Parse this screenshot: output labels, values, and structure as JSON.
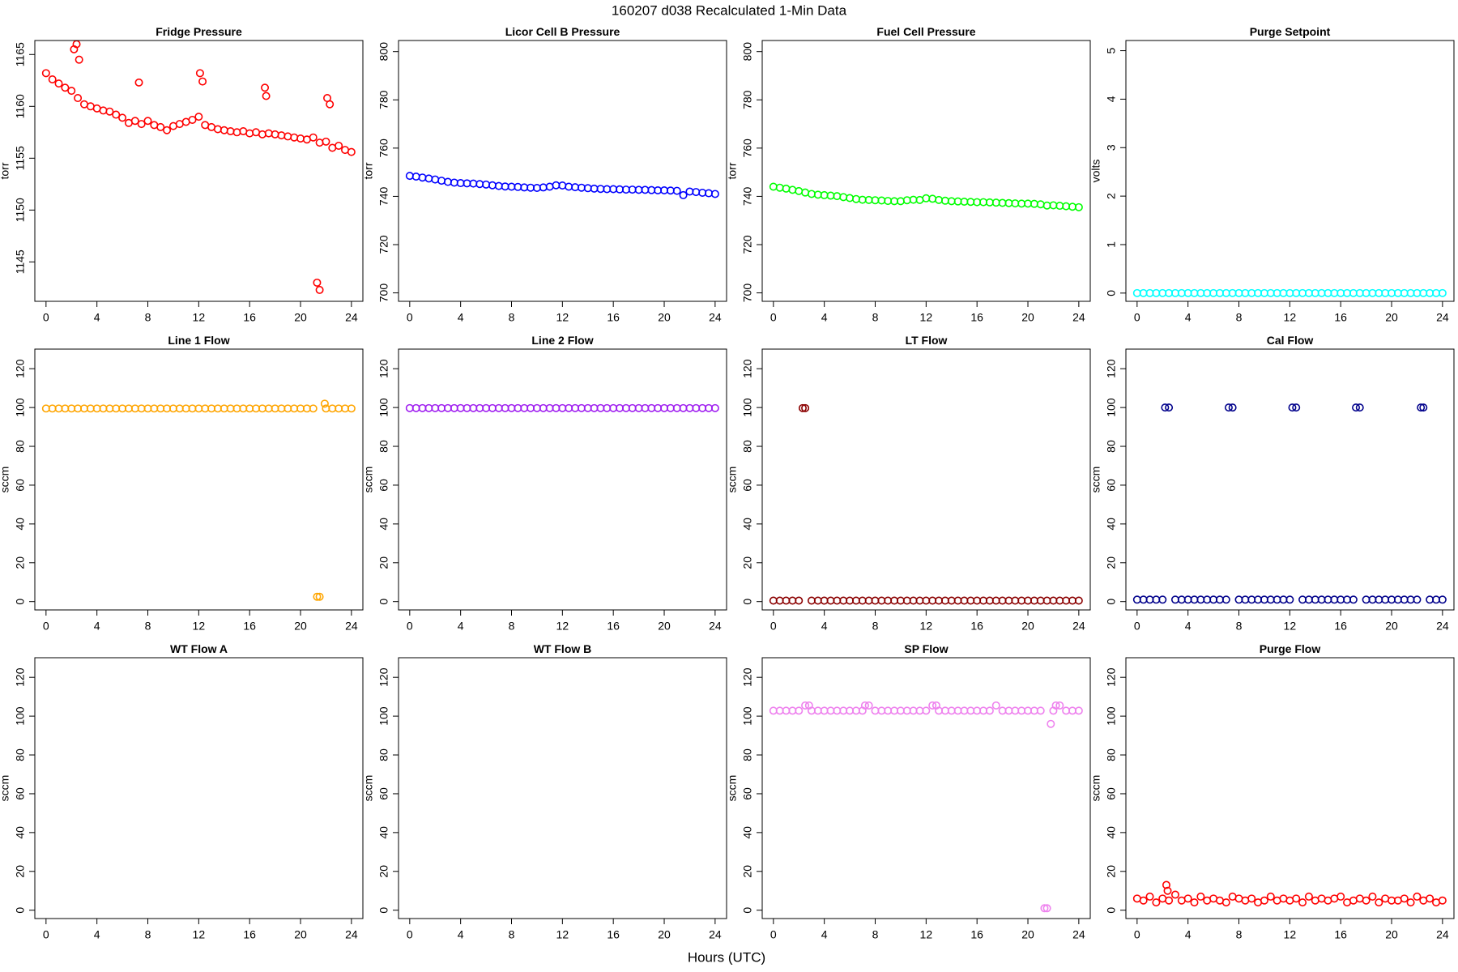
{
  "title": "160207   d038   Recalculated 1-Min Data",
  "xlabel": "Hours (UTC)",
  "chart_data": [
    {
      "type": "scatter",
      "title": "Fridge Pressure",
      "ylabel": "torr",
      "color": "#ff0000",
      "xlim": [
        -0.88,
        24.9
      ],
      "xticks": [
        0,
        4,
        8,
        12,
        16,
        20,
        24
      ],
      "ylim": [
        1141.2,
        1166.35
      ],
      "yticks": [
        1145,
        1150,
        1155,
        1160,
        1165
      ],
      "x": [
        0,
        0.5,
        1,
        1.5,
        2,
        2.5,
        3,
        3.5,
        4,
        4.5,
        5,
        5.5,
        6,
        6.5,
        7,
        7.5,
        8,
        8.5,
        9,
        9.5,
        10,
        10.5,
        11,
        11.5,
        12,
        12.5,
        13,
        13.5,
        14,
        14.5,
        15,
        15.5,
        16,
        16.5,
        17,
        17.5,
        18,
        18.5,
        19,
        19.5,
        20,
        20.5,
        21,
        21.5,
        22,
        22.5,
        23,
        23.5,
        24,
        2.2,
        2.4,
        2.6,
        7.3,
        12.1,
        12.3,
        17.2,
        17.3,
        21.3,
        21.5,
        22.1,
        22.3
      ],
      "values": [
        1163.2,
        1162.6,
        1162.2,
        1161.8,
        1161.5,
        1160.8,
        1160.2,
        1160.0,
        1159.8,
        1159.6,
        1159.5,
        1159.2,
        1158.9,
        1158.4,
        1158.6,
        1158.3,
        1158.6,
        1158.2,
        1158.0,
        1157.7,
        1158.1,
        1158.3,
        1158.5,
        1158.7,
        1159.0,
        1158.2,
        1158.0,
        1157.8,
        1157.7,
        1157.6,
        1157.5,
        1157.6,
        1157.4,
        1157.5,
        1157.3,
        1157.4,
        1157.3,
        1157.2,
        1157.1,
        1157.0,
        1156.9,
        1156.8,
        1157.0,
        1156.5,
        1156.6,
        1156.0,
        1156.2,
        1155.8,
        1155.6,
        1165.5,
        1166.0,
        1164.5,
        1162.3,
        1163.2,
        1162.4,
        1161.8,
        1161.0,
        1143.0,
        1142.3,
        1160.8,
        1160.2
      ]
    },
    {
      "type": "scatter",
      "title": "Licor Cell B Pressure",
      "ylabel": "torr",
      "color": "#0000ff",
      "xlim": [
        -0.88,
        24.9
      ],
      "xticks": [
        0,
        4,
        8,
        12,
        16,
        20,
        24
      ],
      "ylim": [
        696.5,
        804.6
      ],
      "yticks": [
        700,
        720,
        740,
        760,
        780,
        800
      ],
      "x": [
        0,
        0.5,
        1,
        1.5,
        2,
        2.5,
        3,
        3.5,
        4,
        4.5,
        5,
        5.5,
        6,
        6.5,
        7,
        7.5,
        8,
        8.5,
        9,
        9.5,
        10,
        10.5,
        11,
        11.5,
        12,
        12.5,
        13,
        13.5,
        14,
        14.5,
        15,
        15.5,
        16,
        16.5,
        17,
        17.5,
        18,
        18.5,
        19,
        19.5,
        20,
        20.5,
        21,
        21.5,
        22,
        22.5,
        23,
        23.5,
        24
      ],
      "values": [
        748.5,
        748.2,
        747.8,
        747.4,
        747.0,
        746.5,
        746.0,
        745.7,
        745.5,
        745.4,
        745.3,
        745.1,
        744.9,
        744.6,
        744.3,
        744.1,
        744.0,
        743.9,
        743.7,
        743.6,
        743.5,
        743.7,
        744.0,
        744.6,
        744.5,
        744.0,
        743.8,
        743.6,
        743.4,
        743.2,
        743.1,
        743.0,
        743.0,
        742.9,
        742.8,
        742.8,
        742.7,
        742.7,
        742.6,
        742.5,
        742.5,
        742.4,
        742.3,
        740.5,
        742.0,
        741.8,
        741.5,
        741.3,
        741.0
      ]
    },
    {
      "type": "scatter",
      "title": "Fuel Cell Pressure",
      "ylabel": "torr",
      "color": "#00ff00",
      "xlim": [
        -0.88,
        24.9
      ],
      "xticks": [
        0,
        4,
        8,
        12,
        16,
        20,
        24
      ],
      "ylim": [
        696.5,
        804.6
      ],
      "yticks": [
        700,
        720,
        740,
        760,
        780,
        800
      ],
      "x": [
        0,
        0.5,
        1,
        1.5,
        2,
        2.5,
        3,
        3.5,
        4,
        4.5,
        5,
        5.5,
        6,
        6.5,
        7,
        7.5,
        8,
        8.5,
        9,
        9.5,
        10,
        10.5,
        11,
        11.5,
        12,
        12.5,
        13,
        13.5,
        14,
        14.5,
        15,
        15.5,
        16,
        16.5,
        17,
        17.5,
        18,
        18.5,
        19,
        19.5,
        20,
        20.5,
        21,
        21.5,
        22,
        22.5,
        23,
        23.5,
        24
      ],
      "values": [
        744.0,
        743.6,
        743.2,
        742.7,
        742.2,
        741.6,
        741.0,
        740.7,
        740.5,
        740.3,
        740.1,
        739.7,
        739.3,
        738.9,
        738.6,
        738.5,
        738.4,
        738.3,
        738.1,
        738.0,
        738.0,
        738.4,
        738.6,
        738.5,
        739.2,
        739.0,
        738.5,
        738.2,
        738.0,
        737.9,
        737.8,
        737.7,
        737.6,
        737.6,
        737.5,
        737.4,
        737.3,
        737.2,
        737.1,
        737.0,
        737.0,
        736.9,
        736.7,
        736.2,
        736.3,
        736.1,
        735.9,
        735.7,
        735.5
      ]
    },
    {
      "type": "scatter",
      "title": "Purge Setpoint",
      "ylabel": "volts",
      "color": "#00ffff",
      "xlim": [
        -0.88,
        24.9
      ],
      "xticks": [
        0,
        4,
        8,
        12,
        16,
        20,
        24
      ],
      "ylim": [
        -0.17,
        5.21
      ],
      "yticks": [
        0,
        1,
        2,
        3,
        4,
        5
      ],
      "x": [
        0,
        0.5,
        1,
        1.5,
        2,
        2.5,
        3,
        3.5,
        4,
        4.5,
        5,
        5.5,
        6,
        6.5,
        7,
        7.5,
        8,
        8.5,
        9,
        9.5,
        10,
        10.5,
        11,
        11.5,
        12,
        12.5,
        13,
        13.5,
        14,
        14.5,
        15,
        15.5,
        16,
        16.5,
        17,
        17.5,
        18,
        18.5,
        19,
        19.5,
        20,
        20.5,
        21,
        21.5,
        22,
        22.5,
        23,
        23.5,
        24
      ],
      "values": [
        0,
        0,
        0,
        0,
        0,
        0,
        0,
        0,
        0,
        0,
        0,
        0,
        0,
        0,
        0,
        0,
        0,
        0,
        0,
        0,
        0,
        0,
        0,
        0,
        0,
        0,
        0,
        0,
        0,
        0,
        0,
        0,
        0,
        0,
        0,
        0,
        0,
        0,
        0,
        0,
        0,
        0,
        0,
        0,
        0,
        0,
        0,
        0,
        0
      ]
    },
    {
      "type": "scatter",
      "title": "Line 1 Flow",
      "ylabel": "sccm",
      "color": "#ffa500",
      "xlim": [
        -0.88,
        24.9
      ],
      "xticks": [
        0,
        4,
        8,
        12,
        16,
        20,
        24
      ],
      "ylim": [
        -4.3,
        130.1
      ],
      "yticks": [
        0,
        20,
        40,
        60,
        80,
        100,
        120
      ],
      "x": [
        0,
        0.5,
        1,
        1.5,
        2,
        2.5,
        3,
        3.5,
        4,
        4.5,
        5,
        5.5,
        6,
        6.5,
        7,
        7.5,
        8,
        8.5,
        9,
        9.5,
        10,
        10.5,
        11,
        11.5,
        12,
        12.5,
        13,
        13.5,
        14,
        14.5,
        15,
        15.5,
        16,
        16.5,
        17,
        17.5,
        18,
        18.5,
        19,
        19.5,
        20,
        20.5,
        21,
        21.5,
        22,
        22.5,
        23,
        23.5,
        24,
        21.3,
        21.9
      ],
      "values": [
        99.5,
        99.5,
        99.5,
        99.5,
        99.5,
        99.5,
        99.5,
        99.5,
        99.5,
        99.5,
        99.5,
        99.5,
        99.5,
        99.5,
        99.5,
        99.5,
        99.5,
        99.5,
        99.5,
        99.5,
        99.5,
        99.5,
        99.5,
        99.5,
        99.5,
        99.5,
        99.5,
        99.5,
        99.5,
        99.5,
        99.5,
        99.5,
        99.5,
        99.5,
        99.5,
        99.5,
        99.5,
        99.5,
        99.5,
        99.5,
        99.5,
        99.5,
        99.5,
        2.5,
        99.5,
        99.5,
        99.5,
        99.5,
        99.5,
        2.5,
        102
      ]
    },
    {
      "type": "scatter",
      "title": "Line 2 Flow",
      "ylabel": "sccm",
      "color": "#a020f0",
      "xlim": [
        -0.88,
        24.9
      ],
      "xticks": [
        0,
        4,
        8,
        12,
        16,
        20,
        24
      ],
      "ylim": [
        -4.3,
        130.1
      ],
      "yticks": [
        0,
        20,
        40,
        60,
        80,
        100,
        120
      ],
      "x": [
        0,
        0.5,
        1,
        1.5,
        2,
        2.5,
        3,
        3.5,
        4,
        4.5,
        5,
        5.5,
        6,
        6.5,
        7,
        7.5,
        8,
        8.5,
        9,
        9.5,
        10,
        10.5,
        11,
        11.5,
        12,
        12.5,
        13,
        13.5,
        14,
        14.5,
        15,
        15.5,
        16,
        16.5,
        17,
        17.5,
        18,
        18.5,
        19,
        19.5,
        20,
        20.5,
        21,
        21.5,
        22,
        22.5,
        23,
        23.5,
        24
      ],
      "values": [
        99.7,
        99.7,
        99.7,
        99.7,
        99.7,
        99.7,
        99.7,
        99.7,
        99.7,
        99.7,
        99.7,
        99.7,
        99.7,
        99.7,
        99.7,
        99.7,
        99.7,
        99.7,
        99.7,
        99.7,
        99.7,
        99.7,
        99.7,
        99.7,
        99.7,
        99.7,
        99.7,
        99.7,
        99.7,
        99.7,
        99.7,
        99.7,
        99.7,
        99.7,
        99.7,
        99.7,
        99.7,
        99.7,
        99.7,
        99.7,
        99.7,
        99.7,
        99.7,
        99.7,
        99.7,
        99.7,
        99.7,
        99.7,
        99.7
      ]
    },
    {
      "type": "scatter",
      "title": "LT Flow",
      "ylabel": "sccm",
      "color": "#8b0000",
      "xlim": [
        -0.88,
        24.9
      ],
      "xticks": [
        0,
        4,
        8,
        12,
        16,
        20,
        24
      ],
      "ylim": [
        -4.3,
        130.1
      ],
      "yticks": [
        0,
        20,
        40,
        60,
        80,
        100,
        120
      ],
      "x": [
        0,
        0.5,
        1,
        1.5,
        2,
        2.5,
        3,
        3.5,
        4,
        4.5,
        5,
        5.5,
        6,
        6.5,
        7,
        7.5,
        8,
        8.5,
        9,
        9.5,
        10,
        10.5,
        11,
        11.5,
        12,
        12.5,
        13,
        13.5,
        14,
        14.5,
        15,
        15.5,
        16,
        16.5,
        17,
        17.5,
        18,
        18.5,
        19,
        19.5,
        20,
        20.5,
        21,
        21.5,
        22,
        22.5,
        23,
        23.5,
        24,
        2.3
      ],
      "values": [
        0.5,
        0.5,
        0.5,
        0.5,
        0.5,
        99.7,
        0.5,
        0.5,
        0.5,
        0.5,
        0.5,
        0.5,
        0.5,
        0.5,
        0.5,
        0.5,
        0.5,
        0.5,
        0.5,
        0.5,
        0.5,
        0.5,
        0.5,
        0.5,
        0.5,
        0.5,
        0.5,
        0.5,
        0.5,
        0.5,
        0.5,
        0.5,
        0.5,
        0.5,
        0.5,
        0.5,
        0.5,
        0.5,
        0.5,
        0.5,
        0.5,
        0.5,
        0.5,
        0.5,
        0.5,
        0.5,
        0.5,
        0.5,
        0.5,
        99.7
      ]
    },
    {
      "type": "scatter",
      "title": "Cal Flow",
      "ylabel": "sccm",
      "color": "#00008b",
      "xlim": [
        -0.88,
        24.9
      ],
      "xticks": [
        0,
        4,
        8,
        12,
        16,
        20,
        24
      ],
      "ylim": [
        -4.3,
        130.1
      ],
      "yticks": [
        0,
        20,
        40,
        60,
        80,
        100,
        120
      ],
      "x": [
        0,
        0.5,
        1,
        1.5,
        2,
        2.5,
        3,
        3.5,
        4,
        4.5,
        5,
        5.5,
        6,
        6.5,
        7,
        7.5,
        8,
        8.5,
        9,
        9.5,
        10,
        10.5,
        11,
        11.5,
        12,
        12.5,
        13,
        13.5,
        14,
        14.5,
        15,
        15.5,
        16,
        16.5,
        17,
        17.5,
        18,
        18.5,
        19,
        19.5,
        20,
        20.5,
        21,
        21.5,
        22,
        22.5,
        23,
        23.5,
        24,
        2.2,
        7.2,
        12.2,
        17.2,
        22.3
      ],
      "values": [
        1,
        1,
        1,
        1,
        1,
        100,
        1,
        1,
        1,
        1,
        1,
        1,
        1,
        1,
        1,
        100,
        1,
        1,
        1,
        1,
        1,
        1,
        1,
        1,
        1,
        100,
        1,
        1,
        1,
        1,
        1,
        1,
        1,
        1,
        1,
        100,
        1,
        1,
        1,
        1,
        1,
        1,
        1,
        1,
        1,
        100,
        1,
        1,
        1,
        100,
        100,
        100,
        100,
        100
      ]
    },
    {
      "type": "scatter",
      "title": "WT Flow A",
      "ylabel": "sccm",
      "color": "#ff0000",
      "xlim": [
        -0.88,
        24.9
      ],
      "xticks": [
        0,
        4,
        8,
        12,
        16,
        20,
        24
      ],
      "ylim": [
        -4.3,
        130.1
      ],
      "yticks": [
        0,
        20,
        40,
        60,
        80,
        100,
        120
      ],
      "x": [],
      "values": []
    },
    {
      "type": "scatter",
      "title": "WT Flow B",
      "ylabel": "sccm",
      "color": "#ff0000",
      "xlim": [
        -0.88,
        24.9
      ],
      "xticks": [
        0,
        4,
        8,
        12,
        16,
        20,
        24
      ],
      "ylim": [
        -4.3,
        130.1
      ],
      "yticks": [
        0,
        20,
        40,
        60,
        80,
        100,
        120
      ],
      "x": [],
      "values": []
    },
    {
      "type": "scatter",
      "title": "SP Flow",
      "ylabel": "sccm",
      "color": "#ee82ee",
      "xlim": [
        -0.88,
        24.9
      ],
      "xticks": [
        0,
        4,
        8,
        12,
        16,
        20,
        24
      ],
      "ylim": [
        -4.3,
        130.1
      ],
      "yticks": [
        0,
        20,
        40,
        60,
        80,
        100,
        120
      ],
      "x": [
        0,
        0.5,
        1,
        1.5,
        2,
        2.5,
        3,
        3.5,
        4,
        4.5,
        5,
        5.5,
        6,
        6.5,
        7,
        7.5,
        8,
        8.5,
        9,
        9.5,
        10,
        10.5,
        11,
        11.5,
        12,
        12.5,
        13,
        13.5,
        14,
        14.5,
        15,
        15.5,
        16,
        16.5,
        17,
        17.5,
        18,
        18.5,
        19,
        19.5,
        20,
        20.5,
        21,
        21.5,
        22,
        22.5,
        23,
        23.5,
        24,
        2.8,
        7.2,
        12.8,
        21.3,
        21.8,
        22.2
      ],
      "values": [
        102.8,
        102.8,
        102.8,
        102.8,
        102.8,
        105.5,
        102.8,
        102.8,
        102.8,
        102.8,
        102.8,
        102.8,
        102.8,
        102.8,
        102.8,
        105.5,
        102.8,
        102.8,
        102.8,
        102.8,
        102.8,
        102.8,
        102.8,
        102.8,
        102.8,
        105.5,
        102.8,
        102.8,
        102.8,
        102.8,
        102.8,
        102.8,
        102.8,
        102.8,
        102.8,
        105.5,
        102.8,
        102.8,
        102.8,
        102.8,
        102.8,
        102.8,
        102.8,
        1,
        102.8,
        105.5,
        102.8,
        102.8,
        102.8,
        105.5,
        105.5,
        105.5,
        1,
        96,
        105.5
      ]
    },
    {
      "type": "scatter",
      "title": "Purge Flow",
      "ylabel": "sccm",
      "color": "#ff0000",
      "xlim": [
        -0.88,
        24.9
      ],
      "xticks": [
        0,
        4,
        8,
        12,
        16,
        20,
        24
      ],
      "ylim": [
        -4.3,
        130.1
      ],
      "yticks": [
        0,
        20,
        40,
        60,
        80,
        100,
        120
      ],
      "x": [
        0,
        0.5,
        1,
        1.5,
        2,
        2.5,
        3,
        3.5,
        4,
        4.5,
        5,
        5.5,
        6,
        6.5,
        7,
        7.5,
        8,
        8.5,
        9,
        9.5,
        10,
        10.5,
        11,
        11.5,
        12,
        12.5,
        13,
        13.5,
        14,
        14.5,
        15,
        15.5,
        16,
        16.5,
        17,
        17.5,
        18,
        18.5,
        19,
        19.5,
        20,
        20.5,
        21,
        21.5,
        22,
        22.5,
        23,
        23.5,
        24,
        2.3,
        2.4
      ],
      "values": [
        6,
        5,
        7,
        4,
        6,
        5,
        8,
        5,
        6,
        4,
        7,
        5,
        6,
        5,
        4,
        7,
        6,
        5,
        6,
        4,
        5,
        7,
        5,
        6,
        5,
        6,
        4,
        7,
        5,
        6,
        5,
        6,
        7,
        4,
        5,
        6,
        5,
        7,
        4,
        6,
        5,
        5,
        6,
        4,
        7,
        5,
        6,
        4,
        5,
        13,
        10
      ]
    }
  ]
}
